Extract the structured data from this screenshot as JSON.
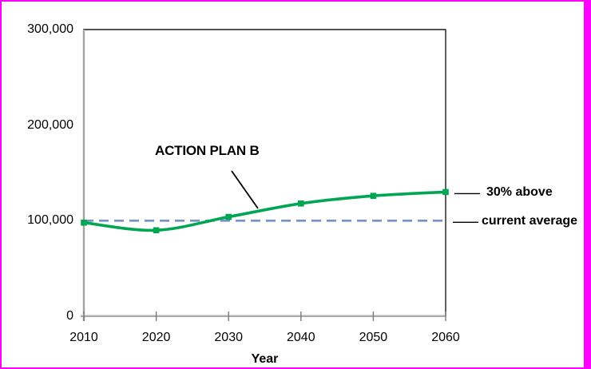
{
  "frame": {
    "border_color": "#ff00ff",
    "background": "#ffffff"
  },
  "chart_data": {
    "type": "line",
    "title": "",
    "xlabel": "Year",
    "ylabel": "",
    "xlim": [
      2010,
      2060
    ],
    "ylim": [
      0,
      300000
    ],
    "grid": false,
    "legend": "none",
    "x": [
      2010,
      2020,
      2030,
      2040,
      2050,
      2060
    ],
    "xtick_labels": [
      "2010",
      "2020",
      "2030",
      "2040",
      "2050",
      "2060"
    ],
    "ytick_values": [
      0,
      100000,
      200000,
      300000
    ],
    "ytick_labels": [
      "0",
      "100,000",
      "200,000",
      "300,000"
    ],
    "series": [
      {
        "name": "ACTION PLAN B",
        "style": "smooth",
        "marker": "square",
        "color": "#00a651",
        "values": [
          98000,
          90000,
          104000,
          118000,
          126000,
          130000
        ]
      },
      {
        "name": "current average",
        "style": "dashed",
        "marker": "none",
        "color": "#7491c9",
        "values": [
          100000,
          100000,
          100000,
          100000,
          100000,
          100000
        ]
      }
    ],
    "annotation": {
      "text": "ACTION PLAN B"
    },
    "callouts": {
      "above": {
        "text": "30% above",
        "value": 130000
      },
      "average": {
        "text": "current average",
        "value": 100000
      }
    }
  }
}
